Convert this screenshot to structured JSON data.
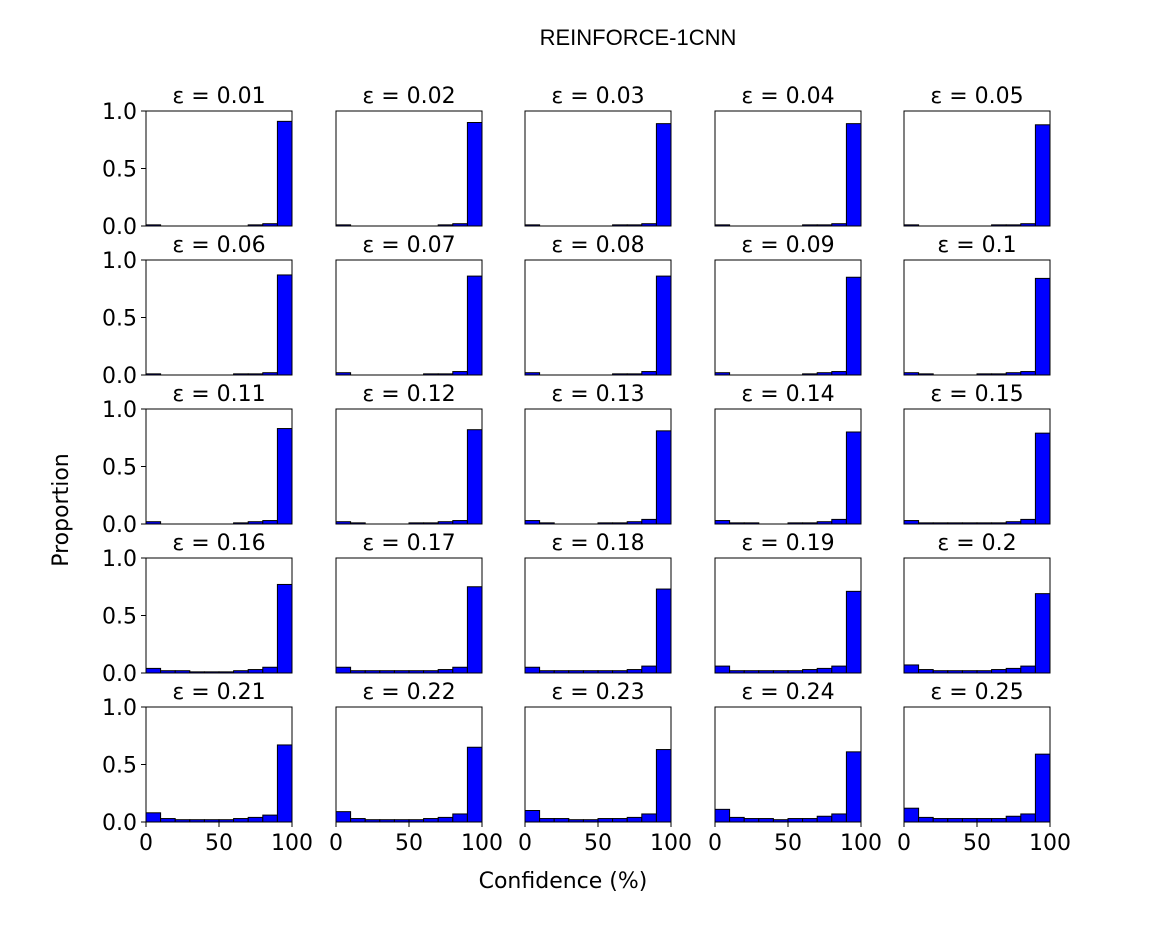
{
  "figure": {
    "title": "REINFORCE-1CNN",
    "xlabel": "Confidence (%)",
    "ylabel": "Proportion"
  },
  "chart_data": {
    "type": "bar",
    "title": "REINFORCE-1CNN",
    "xlabel": "Confidence (%)",
    "ylabel": "Proportion",
    "xlim": [
      0,
      100
    ],
    "ylim": [
      0,
      1
    ],
    "xticks": [
      "0",
      "50",
      "100"
    ],
    "yticks": [
      "0.0",
      "0.5",
      "1.0"
    ],
    "bin_edges": [
      0,
      10,
      20,
      30,
      40,
      50,
      60,
      70,
      80,
      90,
      100
    ],
    "bar_color": "#0000ff",
    "edge_color": "#000000",
    "panels": [
      {
        "title": "ε = 0.01",
        "values": [
          0.01,
          0.0,
          0.0,
          0.0,
          0.0,
          0.0,
          0.0,
          0.01,
          0.02,
          0.91
        ]
      },
      {
        "title": "ε = 0.02",
        "values": [
          0.01,
          0.0,
          0.0,
          0.0,
          0.0,
          0.0,
          0.0,
          0.01,
          0.02,
          0.9
        ]
      },
      {
        "title": "ε = 0.03",
        "values": [
          0.01,
          0.0,
          0.0,
          0.0,
          0.0,
          0.0,
          0.01,
          0.01,
          0.02,
          0.89
        ]
      },
      {
        "title": "ε = 0.04",
        "values": [
          0.01,
          0.0,
          0.0,
          0.0,
          0.0,
          0.0,
          0.01,
          0.01,
          0.02,
          0.89
        ]
      },
      {
        "title": "ε = 0.05",
        "values": [
          0.01,
          0.0,
          0.0,
          0.0,
          0.0,
          0.0,
          0.01,
          0.01,
          0.02,
          0.88
        ]
      },
      {
        "title": "ε = 0.06",
        "values": [
          0.01,
          0.0,
          0.0,
          0.0,
          0.0,
          0.0,
          0.01,
          0.01,
          0.02,
          0.87
        ]
      },
      {
        "title": "ε = 0.07",
        "values": [
          0.02,
          0.0,
          0.0,
          0.0,
          0.0,
          0.0,
          0.01,
          0.01,
          0.03,
          0.86
        ]
      },
      {
        "title": "ε = 0.08",
        "values": [
          0.02,
          0.0,
          0.0,
          0.0,
          0.0,
          0.0,
          0.01,
          0.01,
          0.03,
          0.86
        ]
      },
      {
        "title": "ε = 0.09",
        "values": [
          0.02,
          0.0,
          0.0,
          0.0,
          0.0,
          0.0,
          0.01,
          0.02,
          0.03,
          0.85
        ]
      },
      {
        "title": "ε = 0.1",
        "values": [
          0.02,
          0.01,
          0.0,
          0.0,
          0.0,
          0.01,
          0.01,
          0.02,
          0.03,
          0.84
        ]
      },
      {
        "title": "ε = 0.11",
        "values": [
          0.02,
          0.0,
          0.0,
          0.0,
          0.0,
          0.0,
          0.01,
          0.02,
          0.03,
          0.83
        ]
      },
      {
        "title": "ε = 0.12",
        "values": [
          0.02,
          0.01,
          0.0,
          0.0,
          0.0,
          0.01,
          0.01,
          0.02,
          0.03,
          0.82
        ]
      },
      {
        "title": "ε = 0.13",
        "values": [
          0.03,
          0.01,
          0.0,
          0.0,
          0.0,
          0.01,
          0.01,
          0.02,
          0.04,
          0.81
        ]
      },
      {
        "title": "ε = 0.14",
        "values": [
          0.03,
          0.01,
          0.01,
          0.0,
          0.0,
          0.01,
          0.01,
          0.02,
          0.04,
          0.8
        ]
      },
      {
        "title": "ε = 0.15",
        "values": [
          0.03,
          0.01,
          0.01,
          0.01,
          0.01,
          0.01,
          0.01,
          0.02,
          0.04,
          0.79
        ]
      },
      {
        "title": "ε = 0.16",
        "values": [
          0.04,
          0.02,
          0.02,
          0.01,
          0.01,
          0.01,
          0.02,
          0.03,
          0.05,
          0.77
        ]
      },
      {
        "title": "ε = 0.17",
        "values": [
          0.05,
          0.02,
          0.02,
          0.02,
          0.02,
          0.02,
          0.02,
          0.03,
          0.05,
          0.75
        ]
      },
      {
        "title": "ε = 0.18",
        "values": [
          0.05,
          0.02,
          0.02,
          0.02,
          0.02,
          0.02,
          0.02,
          0.03,
          0.06,
          0.73
        ]
      },
      {
        "title": "ε = 0.19",
        "values": [
          0.06,
          0.02,
          0.02,
          0.02,
          0.02,
          0.02,
          0.03,
          0.04,
          0.06,
          0.71
        ]
      },
      {
        "title": "ε = 0.2",
        "values": [
          0.07,
          0.03,
          0.02,
          0.02,
          0.02,
          0.02,
          0.03,
          0.04,
          0.06,
          0.69
        ]
      },
      {
        "title": "ε = 0.21",
        "values": [
          0.08,
          0.03,
          0.02,
          0.02,
          0.02,
          0.02,
          0.03,
          0.04,
          0.06,
          0.67
        ]
      },
      {
        "title": "ε = 0.22",
        "values": [
          0.09,
          0.03,
          0.02,
          0.02,
          0.02,
          0.02,
          0.03,
          0.04,
          0.07,
          0.65
        ]
      },
      {
        "title": "ε = 0.23",
        "values": [
          0.1,
          0.03,
          0.03,
          0.02,
          0.02,
          0.03,
          0.03,
          0.04,
          0.07,
          0.63
        ]
      },
      {
        "title": "ε = 0.24",
        "values": [
          0.11,
          0.04,
          0.03,
          0.03,
          0.02,
          0.03,
          0.03,
          0.05,
          0.07,
          0.61
        ]
      },
      {
        "title": "ε = 0.25",
        "values": [
          0.12,
          0.04,
          0.03,
          0.03,
          0.03,
          0.03,
          0.03,
          0.05,
          0.07,
          0.59
        ]
      }
    ]
  }
}
